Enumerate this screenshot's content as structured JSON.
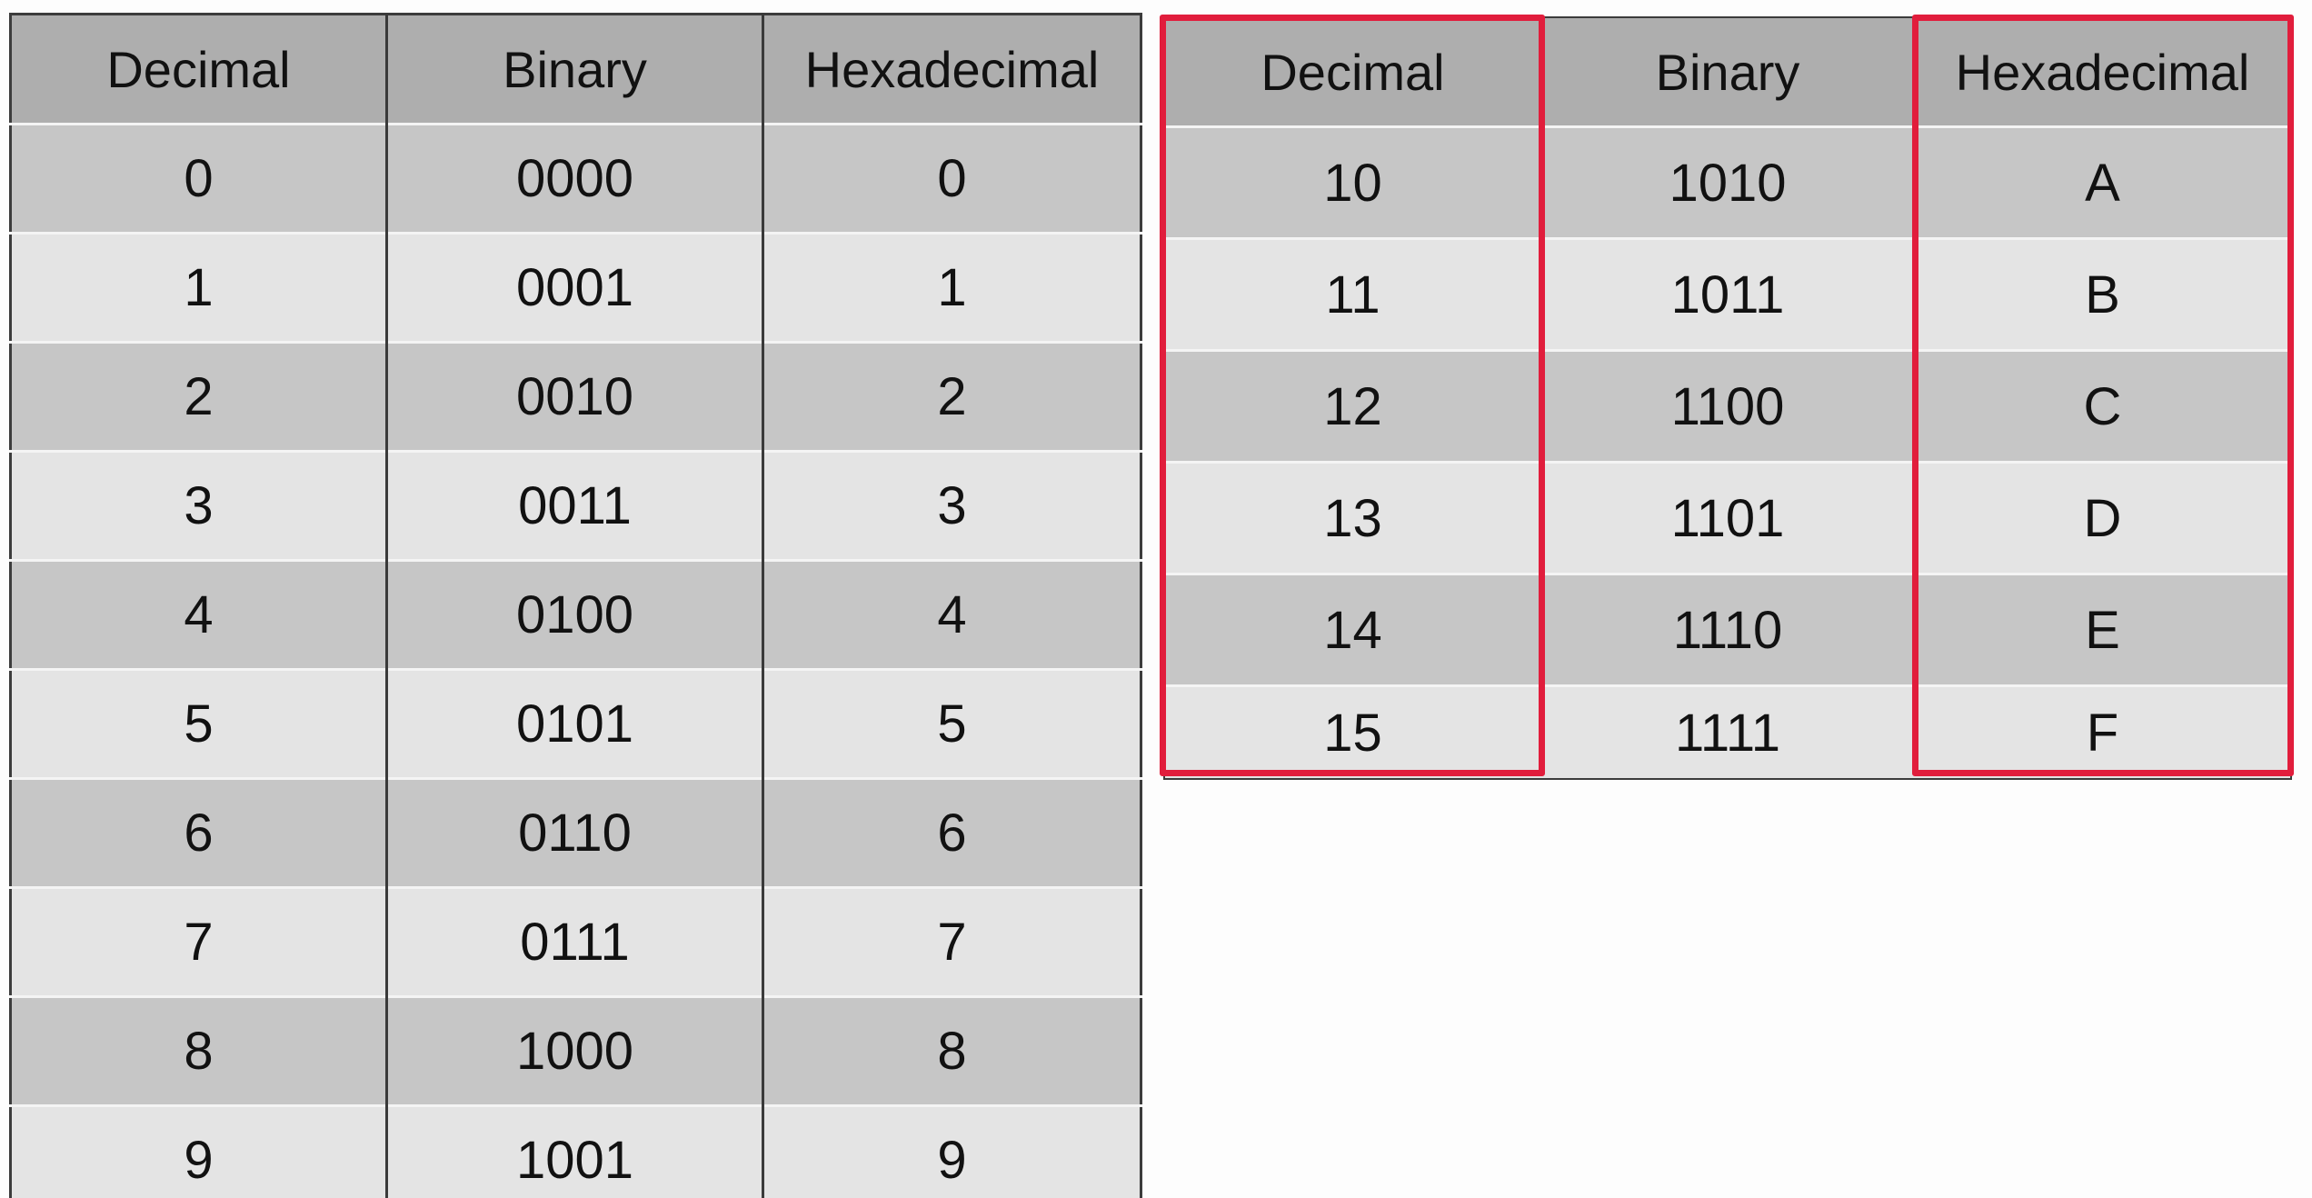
{
  "left_table": {
    "headers": [
      "Decimal",
      "Binary",
      "Hexadecimal"
    ],
    "rows": [
      [
        "0",
        "0000",
        "0"
      ],
      [
        "1",
        "0001",
        "1"
      ],
      [
        "2",
        "0010",
        "2"
      ],
      [
        "3",
        "0011",
        "3"
      ],
      [
        "4",
        "0100",
        "4"
      ],
      [
        "5",
        "0101",
        "5"
      ],
      [
        "6",
        "0110",
        "6"
      ],
      [
        "7",
        "0111",
        "7"
      ],
      [
        "8",
        "1000",
        "8"
      ],
      [
        "9",
        "1001",
        "9"
      ]
    ]
  },
  "right_table": {
    "headers": [
      "Decimal",
      "Binary",
      "Hexadecimal"
    ],
    "rows": [
      [
        "10",
        "1010",
        "A"
      ],
      [
        "11",
        "1011",
        "B"
      ],
      [
        "12",
        "1100",
        "C"
      ],
      [
        "13",
        "1101",
        "D"
      ],
      [
        "14",
        "1110",
        "E"
      ],
      [
        "15",
        "1111",
        "F"
      ]
    ],
    "highlighted_columns": [
      "Decimal",
      "Hexadecimal"
    ]
  },
  "colors": {
    "header_bg": "#aeaeae",
    "row_dark_bg": "#c6c6c6",
    "row_light_bg": "#e4e4e4",
    "highlight": "#e11d3c"
  }
}
